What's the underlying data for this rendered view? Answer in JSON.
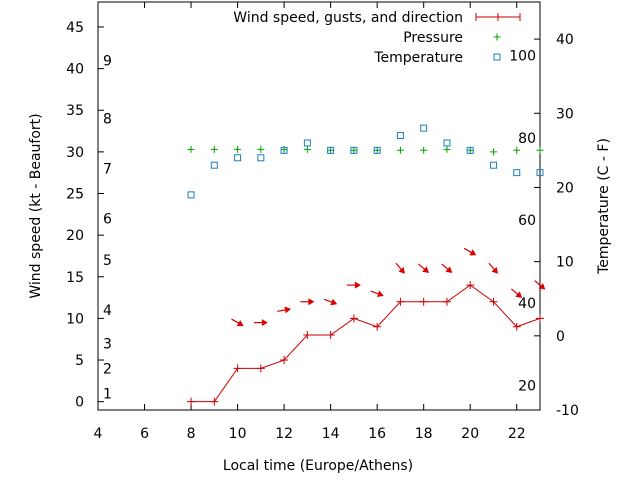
{
  "chart_data": {
    "type": "line",
    "xlabel": "Local time (Europe/Athens)",
    "ylabel": "Wind speed (kt - Beaufort)",
    "y2label": "Temperature (C - F)",
    "xlim": [
      4,
      23
    ],
    "ylim": [
      -1,
      48
    ],
    "y2lim": [
      -10,
      45
    ],
    "xticks": [
      4,
      6,
      8,
      10,
      12,
      14,
      16,
      18,
      20,
      22
    ],
    "yticks": [
      0,
      5,
      10,
      15,
      20,
      25,
      30,
      35,
      40,
      45
    ],
    "y2ticks": [
      -10,
      0,
      10,
      20,
      30,
      40
    ],
    "beaufort_labels": [
      {
        "label": "1",
        "y": 1
      },
      {
        "label": "2",
        "y": 4
      },
      {
        "label": "3",
        "y": 7
      },
      {
        "label": "4",
        "y": 11
      },
      {
        "label": "5",
        "y": 17
      },
      {
        "label": "6",
        "y": 22
      },
      {
        "label": "7",
        "y": 28
      },
      {
        "label": "8",
        "y": 34
      },
      {
        "label": "9",
        "y": 41
      }
    ],
    "fahrenheit_labels": [
      {
        "label": "20",
        "y": -6.7
      },
      {
        "label": "40",
        "y": 4.4
      },
      {
        "label": "60",
        "y": 15.6
      },
      {
        "label": "80",
        "y": 26.7
      },
      {
        "label": "100",
        "y": 37.8
      }
    ],
    "grid": false,
    "legend_position": "top-right",
    "series": [
      {
        "name": "Wind speed, gusts, and direction",
        "color": "#cc0000",
        "x": [
          8,
          9,
          10,
          11,
          12,
          13,
          14,
          15,
          16,
          17,
          18,
          19,
          20,
          21,
          22,
          23
        ],
        "y": [
          0,
          0,
          4,
          4,
          5,
          8,
          8,
          10,
          9,
          12,
          12,
          12,
          14,
          12,
          9,
          10
        ]
      },
      {
        "name": "Pressure",
        "color": "#00a000",
        "x": [
          8,
          9,
          10,
          11,
          12,
          13,
          14,
          15,
          16,
          17,
          18,
          19,
          20,
          21,
          22,
          23
        ],
        "y": [
          30.3,
          30.3,
          30.3,
          30.3,
          30.3,
          30.3,
          30.2,
          30.2,
          30.2,
          30.2,
          30.2,
          30.3,
          30.2,
          30.0,
          30.2,
          30.2
        ]
      },
      {
        "name": "Temperature",
        "color": "#1a7fc4",
        "x": [
          8,
          9,
          10,
          11,
          12,
          13,
          14,
          15,
          16,
          17,
          18,
          19,
          20,
          21,
          22,
          23
        ],
        "y": [
          19,
          23,
          24,
          24,
          25,
          26,
          25,
          25,
          25,
          27,
          28,
          26,
          25,
          23,
          22,
          22
        ]
      }
    ],
    "wind_arrows": [
      {
        "x": 10,
        "y": 9.5,
        "angle": 30
      },
      {
        "x": 11,
        "y": 9.5,
        "angle": 0
      },
      {
        "x": 12,
        "y": 11,
        "angle": -10
      },
      {
        "x": 13,
        "y": 12,
        "angle": 0
      },
      {
        "x": 14,
        "y": 12,
        "angle": 20
      },
      {
        "x": 15,
        "y": 14,
        "angle": 0
      },
      {
        "x": 16,
        "y": 13,
        "angle": 20
      },
      {
        "x": 17,
        "y": 16,
        "angle": 50
      },
      {
        "x": 18,
        "y": 16,
        "angle": 40
      },
      {
        "x": 19,
        "y": 16,
        "angle": 40
      },
      {
        "x": 20,
        "y": 18,
        "angle": 30
      },
      {
        "x": 21,
        "y": 16,
        "angle": 50
      },
      {
        "x": 22,
        "y": 13,
        "angle": 40
      },
      {
        "x": 23,
        "y": 14,
        "angle": 40
      }
    ]
  }
}
